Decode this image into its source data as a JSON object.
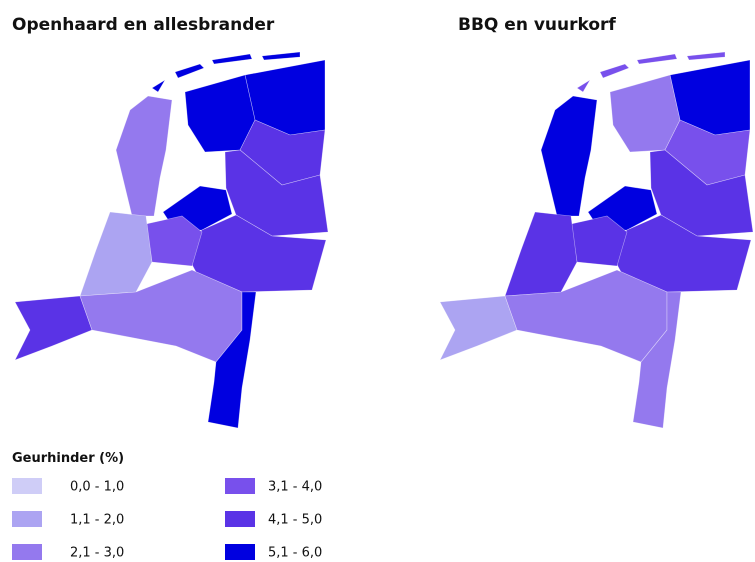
{
  "maps": [
    {
      "title": "Openhaard en allesbrander",
      "classes": [
        5,
        5,
        4,
        4,
        5,
        2,
        4,
        3,
        1,
        4,
        2,
        5,
        5
      ]
    },
    {
      "title": "BBQ en vuurkorf",
      "classes": [
        5,
        2,
        3,
        4,
        5,
        5,
        4,
        4,
        4,
        1,
        2,
        2,
        3
      ]
    }
  ],
  "legend": {
    "title": "Geurhinder (%)",
    "entries": [
      {
        "label": "0,0 - 1,0",
        "color": "#cfcdf7"
      },
      {
        "label": "1,1 - 2,0",
        "color": "#aca4f2"
      },
      {
        "label": "2,1 - 3,0",
        "color": "#9479ee"
      },
      {
        "label": "3,1 - 4,0",
        "color": "#7850ec"
      },
      {
        "label": "4,1 - 5,0",
        "color": "#5a33e6"
      },
      {
        "label": "5,1 - 6,0",
        "color": "#0000e0"
      }
    ]
  }
}
